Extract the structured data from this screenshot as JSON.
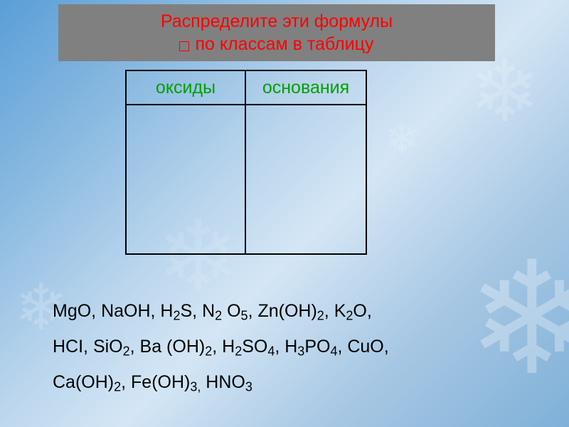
{
  "header": {
    "line1": "Распределите эти формулы",
    "line2": "по классам в таблицу",
    "text_color": "#ff0000",
    "bg_color": "#808080",
    "fontsize": 25
  },
  "table": {
    "type": "table",
    "columns": [
      "оксиды",
      "основания"
    ],
    "rows": [
      [
        "",
        ""
      ]
    ],
    "header_color": "#00a000",
    "border_color": "#000000",
    "header_fontsize": 25,
    "col_widths_pct": [
      50,
      50
    ],
    "bg_color": "transparent"
  },
  "formulas_block": {
    "line1_html": "MgO, NaOH, H<sub>2</sub>S, N<sub>2</sub> O<sub>5</sub>, Zn(OH)<sub>2</sub>, K<sub>2</sub>O,",
    "line2_html": "HCI, SiO<sub>2</sub>, Ba (OH)<sub>2</sub>, H<sub>2</sub>SO<sub>4</sub>, H<sub>3</sub>PO<sub>4</sub>, CuO,",
    "line3_html": "Ca(OH)<sub>2</sub>, Fe(OH)<sub>3,</sub> HNO<sub>3</sub>",
    "text_color": "#000000",
    "fontsize": 25
  },
  "background": {
    "gradient_colors": [
      "#5a9ed8",
      "#87b8e0",
      "#b8d4ec",
      "#d4e6f5",
      "#a8c8e4",
      "#7fb0d8"
    ],
    "decor_color": "rgba(255,255,255,0.25)"
  }
}
